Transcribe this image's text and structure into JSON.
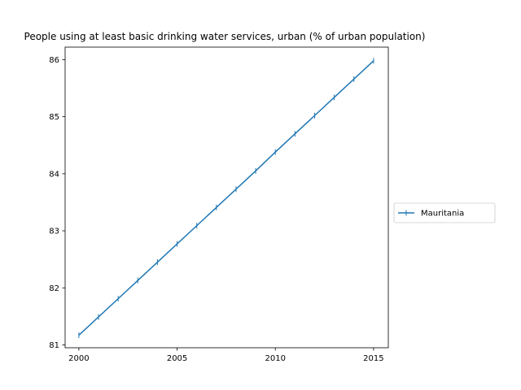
{
  "chart_data": {
    "type": "line",
    "title": "People using at least basic drinking water services, urban (% of urban population)",
    "xlabel": "",
    "ylabel": "",
    "x": [
      2000,
      2001,
      2002,
      2003,
      2004,
      2005,
      2006,
      2007,
      2008,
      2009,
      2010,
      2011,
      2012,
      2013,
      2014,
      2015
    ],
    "series": [
      {
        "name": "Mauritania",
        "color": "#1f77b4",
        "values": [
          81.17,
          81.49,
          81.81,
          82.13,
          82.45,
          82.77,
          83.09,
          83.41,
          83.73,
          84.05,
          84.38,
          84.7,
          85.02,
          85.34,
          85.66,
          85.98
        ]
      }
    ],
    "xticks": [
      2000,
      2005,
      2010,
      2015
    ],
    "yticks": [
      81,
      82,
      83,
      84,
      85,
      86
    ],
    "xlim": [
      1999.3,
      2015.75
    ],
    "ylim": [
      80.95,
      86.22
    ],
    "grid": false,
    "legend_position": "right"
  }
}
